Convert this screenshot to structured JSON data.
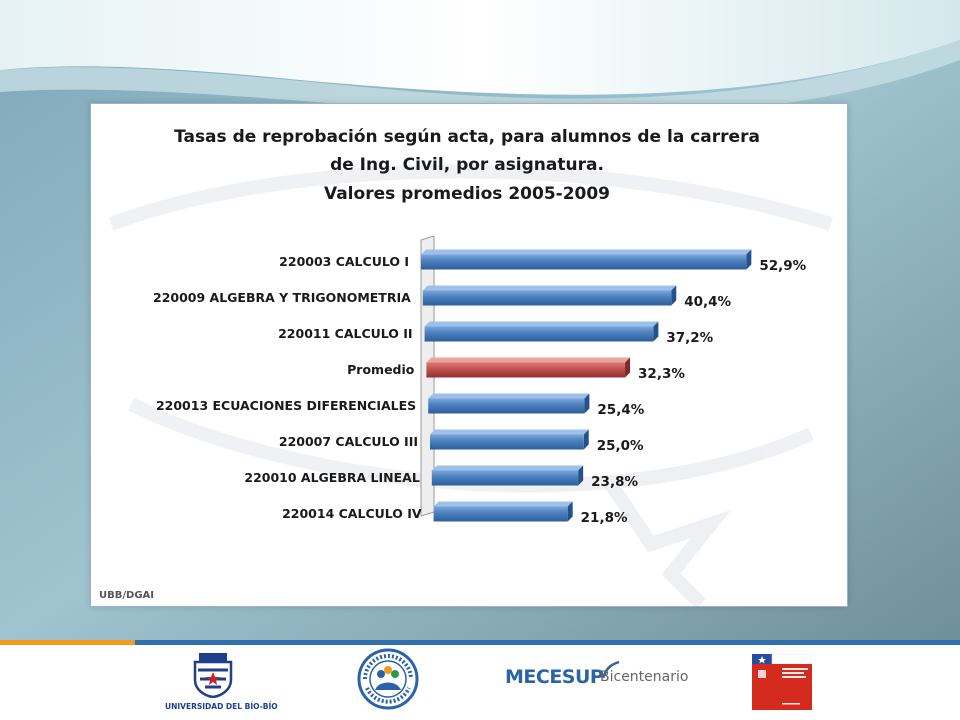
{
  "chart_data": {
    "type": "bar",
    "orientation": "horizontal",
    "title_lines": [
      "Tasas de reprobación según acta, para alumnos de la carrera",
      "de Ing. Civil, por asignatura.",
      "Valores promedios 2005-2009"
    ],
    "categories": [
      "220003 CALCULO  I",
      "220009 ALGEBRA Y TRIGONOMETRIA",
      "220011 CALCULO  II",
      "Promedio",
      "220013 ECUACIONES DIFERENCIALES",
      "220007 CALCULO  III",
      "220010 ALGEBRA LINEAL",
      "220014 CALCULO  IV"
    ],
    "values": [
      52.9,
      40.4,
      37.2,
      32.3,
      25.4,
      25.0,
      23.8,
      21.8
    ],
    "value_labels": [
      "52,9%",
      "40,4%",
      "37,2%",
      "32,3%",
      "25,4%",
      "25,0%",
      "23,8%",
      "21,8%"
    ],
    "highlight_index": 3,
    "colors": {
      "bar": "#4a7ebb",
      "highlight": "#c0504d"
    },
    "xlim": [
      0,
      60
    ],
    "grid": false,
    "legend": "none",
    "source": "UBB/DGAI"
  },
  "footer": {
    "logos": [
      {
        "icon": "university-shield-icon",
        "caption": "UNIVERSIDAD DEL BÍO-BÍO"
      },
      {
        "icon": "programa-politicas-seal-icon",
        "caption": ""
      },
      {
        "icon": "mecesup-logo-icon",
        "text_main": "MECESUP",
        "text_sub": "Bicentenario"
      },
      {
        "icon": "ministerio-logo-icon",
        "caption": ""
      }
    ]
  }
}
